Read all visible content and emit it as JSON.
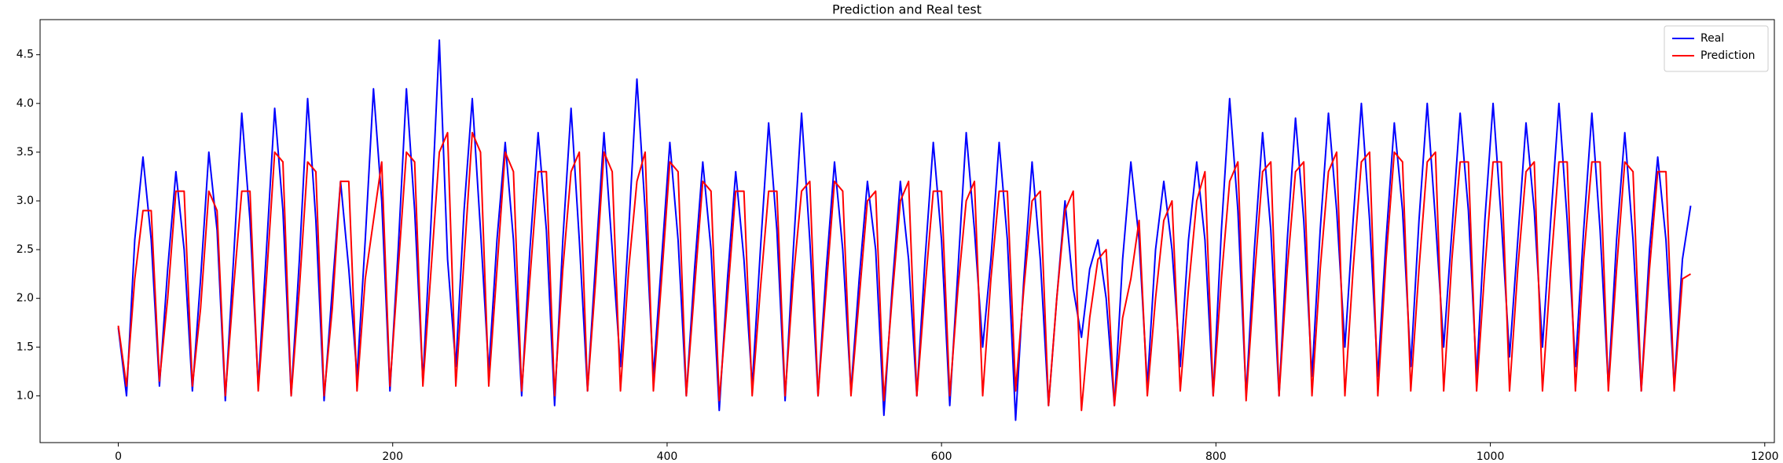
{
  "chart_data": {
    "type": "line",
    "title": "Prediction and Real test",
    "xlim": [
      -57,
      1207
    ],
    "ylim": [
      0.52,
      4.86
    ],
    "xticks": [
      0,
      200,
      400,
      600,
      800,
      1000,
      1200
    ],
    "yticks": [
      {
        "value": 1,
        "label": "1.0"
      },
      1.5,
      {
        "value": 2,
        "label": "2.0"
      },
      2.5,
      {
        "value": 3,
        "label": "3.0"
      },
      3.5,
      {
        "value": 4,
        "label": "4.0"
      },
      4.5
    ],
    "legend": "upper right",
    "x": [
      0,
      6,
      12,
      18,
      24,
      30,
      36,
      42,
      48,
      54,
      60,
      66,
      72,
      78,
      84,
      90,
      96,
      102,
      108,
      114,
      120,
      126,
      132,
      138,
      144,
      150,
      156,
      162,
      168,
      174,
      180,
      186,
      192,
      198,
      204,
      210,
      216,
      222,
      228,
      234,
      240,
      246,
      252,
      258,
      264,
      270,
      276,
      282,
      288,
      294,
      300,
      306,
      312,
      318,
      324,
      330,
      336,
      342,
      348,
      354,
      360,
      366,
      372,
      378,
      384,
      390,
      396,
      402,
      408,
      414,
      420,
      426,
      432,
      438,
      444,
      450,
      456,
      462,
      468,
      474,
      480,
      486,
      492,
      498,
      504,
      510,
      516,
      522,
      528,
      534,
      540,
      546,
      552,
      558,
      564,
      570,
      576,
      582,
      588,
      594,
      600,
      606,
      612,
      618,
      624,
      630,
      636,
      642,
      648,
      654,
      660,
      666,
      672,
      678,
      684,
      690,
      696,
      702,
      708,
      714,
      720,
      726,
      732,
      738,
      744,
      750,
      756,
      762,
      768,
      774,
      780,
      786,
      792,
      798,
      804,
      810,
      816,
      822,
      828,
      834,
      840,
      846,
      852,
      858,
      864,
      870,
      876,
      882,
      888,
      894,
      900,
      906,
      912,
      918,
      924,
      930,
      936,
      942,
      948,
      954,
      960,
      966,
      972,
      978,
      984,
      990,
      996,
      1002,
      1008,
      1014,
      1020,
      1026,
      1032,
      1038,
      1044,
      1050,
      1056,
      1062,
      1068,
      1074,
      1080,
      1086,
      1092,
      1098,
      1104,
      1110,
      1116,
      1122,
      1128,
      1134,
      1140,
      1146
    ],
    "series": [
      {
        "name": "Real",
        "color": "#0000ff",
        "values": [
          1.7,
          1.0,
          2.6,
          3.45,
          2.6,
          1.1,
          2.3,
          3.3,
          2.5,
          1.05,
          2.2,
          3.5,
          2.7,
          0.95,
          2.4,
          3.9,
          2.8,
          1.1,
          2.5,
          3.95,
          2.9,
          1.0,
          2.4,
          4.05,
          2.8,
          0.95,
          2.1,
          3.2,
          2.3,
          1.2,
          2.6,
          4.15,
          3.0,
          1.05,
          2.5,
          4.15,
          2.9,
          1.15,
          2.8,
          4.65,
          2.4,
          1.3,
          2.9,
          4.05,
          2.7,
          1.25,
          2.6,
          3.6,
          2.6,
          1.0,
          2.5,
          3.7,
          2.7,
          0.9,
          2.6,
          3.95,
          2.6,
          1.05,
          2.4,
          3.7,
          2.5,
          1.3,
          2.7,
          4.25,
          2.9,
          1.2,
          2.4,
          3.6,
          2.6,
          1.0,
          2.3,
          3.4,
          2.5,
          0.85,
          2.2,
          3.3,
          2.4,
          1.1,
          2.5,
          3.8,
          2.7,
          0.95,
          2.5,
          3.9,
          2.6,
          1.0,
          2.3,
          3.4,
          2.5,
          1.05,
          2.2,
          3.2,
          2.5,
          0.8,
          2.1,
          3.2,
          2.4,
          1.0,
          2.4,
          3.6,
          2.6,
          0.9,
          2.3,
          3.7,
          2.7,
          1.5,
          2.4,
          3.6,
          2.6,
          0.75,
          2.2,
          3.4,
          2.4,
          0.9,
          2.0,
          3.0,
          2.1,
          1.6,
          2.3,
          2.6,
          2.0,
          0.9,
          2.4,
          3.4,
          2.6,
          1.1,
          2.5,
          3.2,
          2.5,
          1.3,
          2.6,
          3.4,
          2.6,
          1.0,
          2.7,
          4.05,
          2.9,
          1.0,
          2.5,
          3.7,
          2.7,
          1.0,
          2.6,
          3.85,
          2.8,
          1.2,
          2.7,
          3.9,
          2.9,
          1.5,
          2.8,
          4.0,
          2.8,
          1.2,
          2.6,
          3.8,
          2.9,
          1.3,
          2.8,
          4.0,
          2.8,
          1.5,
          2.7,
          3.9,
          2.9,
          1.2,
          2.8,
          4.0,
          2.8,
          1.4,
          2.6,
          3.8,
          2.9,
          1.5,
          2.8,
          4.0,
          2.8,
          1.3,
          2.7,
          3.9,
          2.7,
          1.1,
          2.6,
          3.7,
          2.6,
          1.05,
          2.5,
          3.45,
          2.6,
          1.1,
          2.4,
          2.95
        ]
      },
      {
        "name": "Prediction",
        "color": "#ff0000",
        "values": [
          1.72,
          1.1,
          2.2,
          2.9,
          2.9,
          1.15,
          2.0,
          3.1,
          3.1,
          1.1,
          1.9,
          3.1,
          2.9,
          1.0,
          2.1,
          3.1,
          3.1,
          1.05,
          2.2,
          3.5,
          3.4,
          1.0,
          2.1,
          3.4,
          3.3,
          1.0,
          1.9,
          3.2,
          3.2,
          1.05,
          2.2,
          2.8,
          3.4,
          1.1,
          2.3,
          3.5,
          3.4,
          1.1,
          2.3,
          3.5,
          3.7,
          1.1,
          2.4,
          3.7,
          3.5,
          1.1,
          2.3,
          3.5,
          3.3,
          1.05,
          2.2,
          3.3,
          3.3,
          1.0,
          2.3,
          3.3,
          3.5,
          1.05,
          2.2,
          3.5,
          3.3,
          1.05,
          2.3,
          3.2,
          3.5,
          1.05,
          2.2,
          3.4,
          3.3,
          1.0,
          2.1,
          3.2,
          3.1,
          0.95,
          2.0,
          3.1,
          3.1,
          1.0,
          2.1,
          3.1,
          3.1,
          1.0,
          2.2,
          3.1,
          3.2,
          1.0,
          2.1,
          3.2,
          3.1,
          1.0,
          2.0,
          3.0,
          3.1,
          0.95,
          2.0,
          3.0,
          3.2,
          1.0,
          2.1,
          3.1,
          3.1,
          1.0,
          2.1,
          3.0,
          3.2,
          1.0,
          2.2,
          3.1,
          3.1,
          1.05,
          2.1,
          3.0,
          3.1,
          0.9,
          2.0,
          2.9,
          3.1,
          0.85,
          1.8,
          2.4,
          2.5,
          0.9,
          1.8,
          2.2,
          2.8,
          1.0,
          2.0,
          2.8,
          3.0,
          1.05,
          2.1,
          3.0,
          3.3,
          1.0,
          2.2,
          3.2,
          3.4,
          0.95,
          2.2,
          3.3,
          3.4,
          1.0,
          2.3,
          3.3,
          3.4,
          1.0,
          2.3,
          3.3,
          3.5,
          1.0,
          2.3,
          3.4,
          3.5,
          1.0,
          2.4,
          3.5,
          3.4,
          1.05,
          2.3,
          3.4,
          3.5,
          1.05,
          2.4,
          3.4,
          3.4,
          1.05,
          2.3,
          3.4,
          3.4,
          1.05,
          2.3,
          3.3,
          3.4,
          1.05,
          2.3,
          3.4,
          3.4,
          1.05,
          2.4,
          3.4,
          3.4,
          1.05,
          2.3,
          3.4,
          3.3,
          1.05,
          2.3,
          3.3,
          3.3,
          1.05,
          2.2,
          2.25
        ]
      }
    ]
  }
}
